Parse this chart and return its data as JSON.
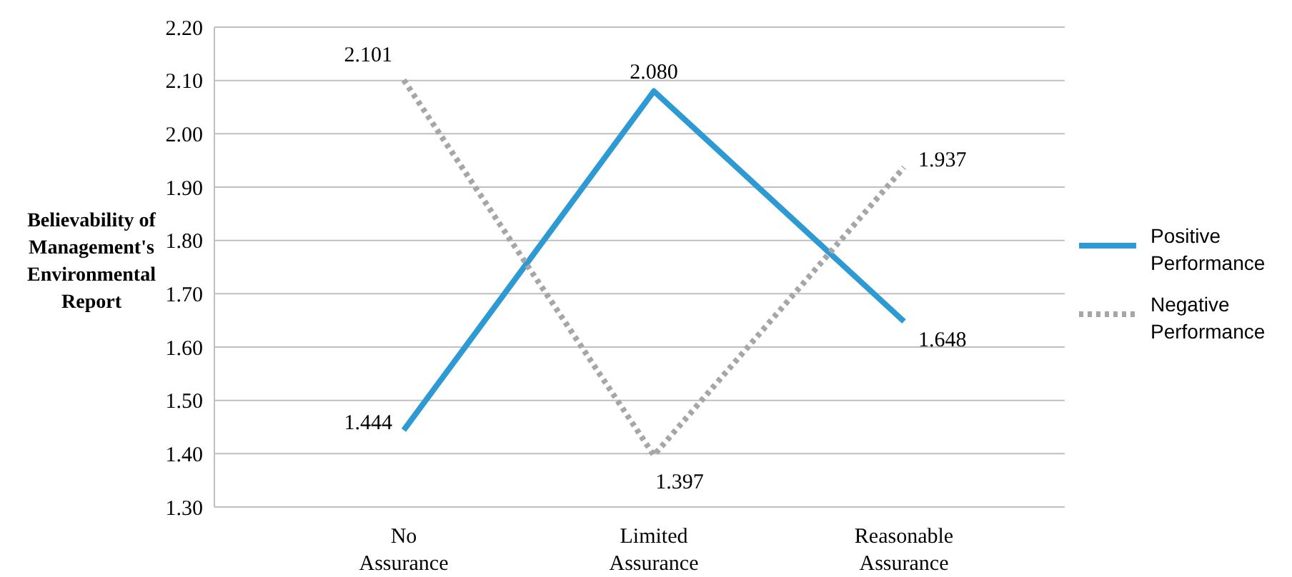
{
  "chart_data": {
    "type": "line",
    "ylabel": "Believability of Management's Environmental Report",
    "categories": [
      "No Assurance",
      "Limited Assurance",
      "Reasonable Assurance"
    ],
    "series": [
      {
        "name": "Positive Performance",
        "color": "#2e9ad4",
        "values": [
          1.444,
          2.08,
          1.648
        ],
        "value_labels": [
          "1.444",
          "2.080",
          "1.648"
        ],
        "line_style": "solid"
      },
      {
        "name": "Negative Performance",
        "color": "#a6a6a6",
        "values": [
          2.101,
          1.397,
          1.937
        ],
        "value_labels": [
          "2.101",
          "1.397",
          "1.937"
        ],
        "line_style": "dotted"
      }
    ],
    "ylim": [
      1.3,
      2.2
    ],
    "yticks": [
      {
        "value": 1.3,
        "label": "1.30"
      },
      {
        "value": 1.4,
        "label": "1.40"
      },
      {
        "value": 1.5,
        "label": "1.50"
      },
      {
        "value": 1.6,
        "label": "1.60"
      },
      {
        "value": 1.7,
        "label": "1.70"
      },
      {
        "value": 1.8,
        "label": "1.80"
      },
      {
        "value": 1.9,
        "label": "1.90"
      },
      {
        "value": 2.0,
        "label": "2.00"
      },
      {
        "value": 2.1,
        "label": "2.10"
      },
      {
        "value": 2.2,
        "label": "2.20"
      }
    ],
    "grid": "y",
    "legend": "right",
    "marker": "none"
  }
}
